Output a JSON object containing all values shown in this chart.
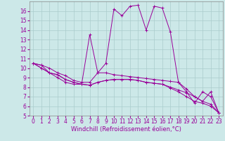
{
  "background_color": "#cce8e8",
  "grid_color": "#aacccc",
  "line_color": "#990099",
  "xlabel": "Windchill (Refroidissement éolien,°C)",
  "ylim": [
    5,
    17
  ],
  "xlim": [
    -0.5,
    23.5
  ],
  "yticks": [
    5,
    6,
    7,
    8,
    9,
    10,
    11,
    12,
    13,
    14,
    15,
    16
  ],
  "xticks": [
    0,
    1,
    2,
    3,
    4,
    5,
    6,
    7,
    8,
    9,
    10,
    11,
    12,
    13,
    14,
    15,
    16,
    17,
    18,
    19,
    20,
    21,
    22,
    23
  ],
  "series": [
    [
      10.5,
      10.3,
      10.0,
      9.5,
      9.2,
      8.7,
      8.5,
      8.5,
      9.5,
      10.5,
      16.2,
      15.5,
      16.5,
      16.6,
      14.0,
      16.5,
      16.3,
      13.8,
      8.5,
      7.5,
      6.3,
      7.5,
      7.0,
      5.3
    ],
    [
      10.5,
      10.3,
      9.5,
      9.0,
      8.5,
      8.3,
      8.3,
      13.5,
      9.5,
      9.5,
      9.3,
      9.2,
      9.1,
      9.0,
      8.9,
      8.8,
      8.7,
      8.6,
      8.5,
      7.8,
      7.0,
      6.5,
      7.5,
      5.3
    ],
    [
      10.5,
      10.0,
      9.5,
      9.3,
      8.8,
      8.5,
      8.3,
      8.2,
      8.5,
      8.7,
      8.8,
      8.8,
      8.8,
      8.7,
      8.5,
      8.4,
      8.3,
      8.0,
      7.7,
      7.4,
      7.0,
      6.5,
      6.2,
      5.3
    ],
    [
      10.5,
      10.0,
      9.5,
      9.3,
      8.8,
      8.5,
      8.3,
      8.2,
      8.5,
      8.7,
      8.8,
      8.8,
      8.8,
      8.7,
      8.5,
      8.4,
      8.3,
      7.9,
      7.5,
      7.0,
      6.5,
      6.3,
      6.0,
      5.3
    ]
  ],
  "xlabel_fontsize": 6,
  "tick_labelsize": 5.5,
  "linewidth": 0.7,
  "markersize": 2.5
}
